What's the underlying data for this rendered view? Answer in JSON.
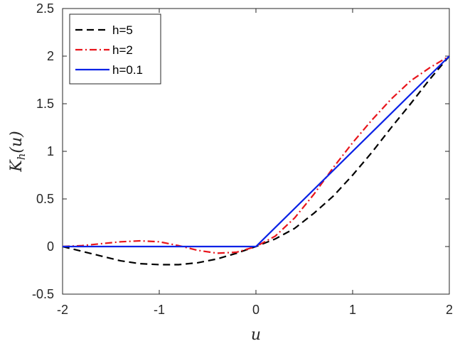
{
  "chart_data": {
    "type": "line",
    "xlabel": "u",
    "ylabel_main": "K",
    "ylabel_sub": "h",
    "ylabel_arg": "(u)",
    "xlim": [
      -2,
      2
    ],
    "ylim": [
      -0.5,
      2.5
    ],
    "xticks": [
      "-2",
      "-1",
      "0",
      "1",
      "2"
    ],
    "yticks": [
      "-0.5",
      "0",
      "0.5",
      "1",
      "1.5",
      "2",
      "2.5"
    ],
    "grid": false,
    "legend_position": "top-left",
    "series": [
      {
        "name": "h=5",
        "color": "#000000",
        "dash": "dashed",
        "x": [
          -2.0,
          -1.8,
          -1.6,
          -1.4,
          -1.2,
          -1.0,
          -0.8,
          -0.6,
          -0.4,
          -0.2,
          0.0,
          0.2,
          0.4,
          0.6,
          0.8,
          1.0,
          1.2,
          1.4,
          1.6,
          1.8,
          2.0
        ],
        "y": [
          0.0,
          -0.05,
          -0.1,
          -0.15,
          -0.18,
          -0.19,
          -0.19,
          -0.17,
          -0.13,
          -0.07,
          0.0,
          0.08,
          0.19,
          0.35,
          0.53,
          0.75,
          0.99,
          1.25,
          1.5,
          1.76,
          2.0
        ]
      },
      {
        "name": "h=2",
        "color": "#e8141b",
        "dash": "dashdot",
        "x": [
          -2.0,
          -1.8,
          -1.6,
          -1.4,
          -1.2,
          -1.0,
          -0.8,
          -0.6,
          -0.4,
          -0.2,
          0.0,
          0.2,
          0.4,
          0.6,
          0.8,
          1.0,
          1.2,
          1.4,
          1.6,
          1.8,
          2.0
        ],
        "y": [
          0.0,
          0.01,
          0.03,
          0.05,
          0.06,
          0.05,
          0.01,
          -0.04,
          -0.07,
          -0.06,
          0.0,
          0.11,
          0.3,
          0.55,
          0.83,
          1.09,
          1.33,
          1.55,
          1.74,
          1.88,
          2.0
        ]
      },
      {
        "name": "h=0.1",
        "color": "#0a22e6",
        "dash": "solid",
        "x": [
          -2.0,
          0.0,
          2.0
        ],
        "y": [
          0.0,
          0.0,
          2.0
        ]
      }
    ]
  }
}
